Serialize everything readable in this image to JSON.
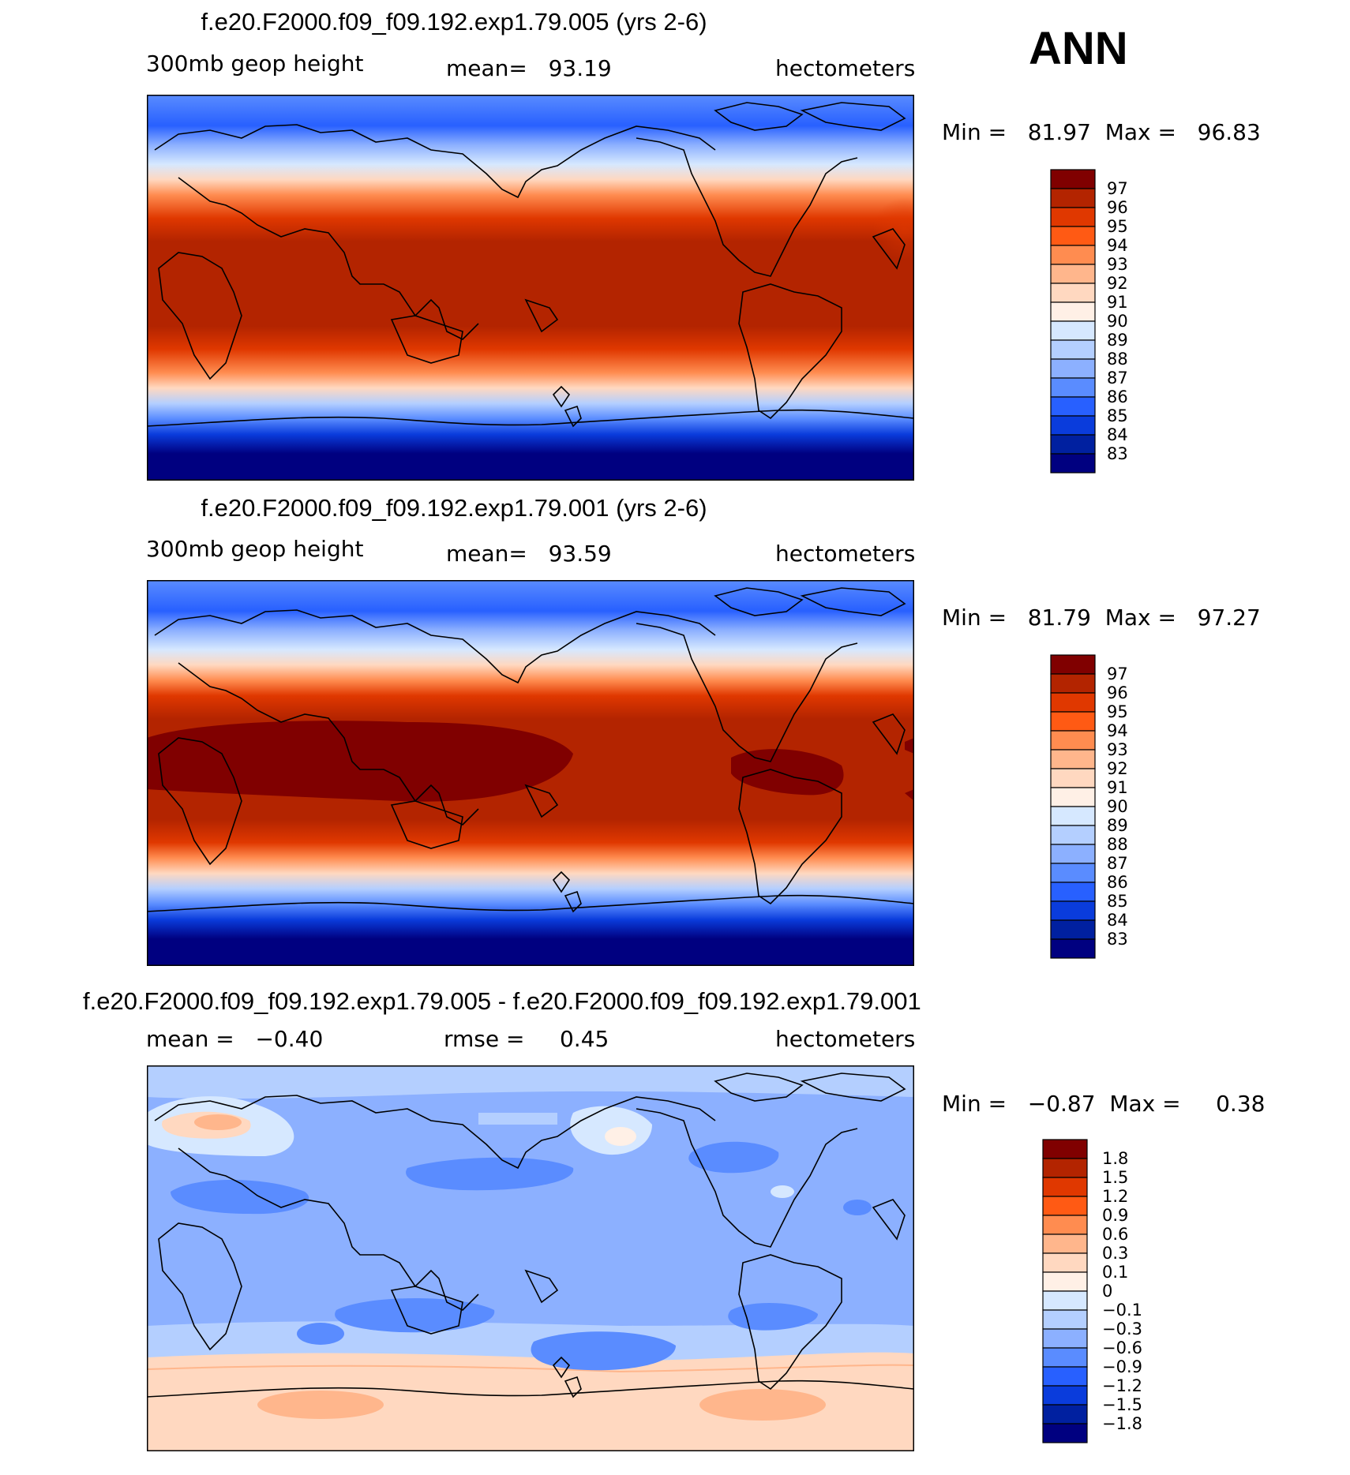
{
  "season": "ANN",
  "panels": [
    {
      "title": "f.e20.F2000.f09_f09.192.exp1.79.005 (yrs 2-6)",
      "left_label": "300mb geop height",
      "center_label": "mean=   93.19",
      "right_label": "hectometers",
      "minmax": "Min =   81.97  Max =   96.83",
      "colorbar_labels": [
        "97",
        "96",
        "95",
        "94",
        "93",
        "92",
        "91",
        "90",
        "89",
        "88",
        "87",
        "86",
        "85",
        "84",
        "83"
      ],
      "colors": [
        "#800000",
        "#b32400",
        "#e03800",
        "#ff5a14",
        "#ff8c50",
        "#ffb68c",
        "#ffd8c0",
        "#fff0e6",
        "#d6e8ff",
        "#b4cfff",
        "#8cb0ff",
        "#5a8cff",
        "#2860ff",
        "#0a3cdc",
        "#0020a0",
        "#000080"
      ]
    },
    {
      "title": "f.e20.F2000.f09_f09.192.exp1.79.001 (yrs 2-6)",
      "left_label": "300mb geop height",
      "center_label": "mean=   93.59",
      "right_label": "hectometers",
      "minmax": "Min =   81.79  Max =   97.27",
      "colorbar_labels": [
        "97",
        "96",
        "95",
        "94",
        "93",
        "92",
        "91",
        "90",
        "89",
        "88",
        "87",
        "86",
        "85",
        "84",
        "83"
      ],
      "colors": [
        "#800000",
        "#b32400",
        "#e03800",
        "#ff5a14",
        "#ff8c50",
        "#ffb68c",
        "#ffd8c0",
        "#fff0e6",
        "#d6e8ff",
        "#b4cfff",
        "#8cb0ff",
        "#5a8cff",
        "#2860ff",
        "#0a3cdc",
        "#0020a0",
        "#000080"
      ]
    },
    {
      "title": "f.e20.F2000.f09_f09.192.exp1.79.005 - f.e20.F2000.f09_f09.192.exp1.79.001",
      "left_label": "mean =   −0.40",
      "center_label": "rmse =     0.45",
      "right_label": "hectometers",
      "minmax": "Min =   −0.87  Max =     0.38",
      "colorbar_labels": [
        "1.8",
        "1.5",
        "1.2",
        "0.9",
        "0.6",
        "0.3",
        "0.1",
        "0",
        "−0.1",
        "−0.3",
        "−0.6",
        "−0.9",
        "−1.2",
        "−1.5",
        "−1.8"
      ],
      "colors": [
        "#800000",
        "#b32400",
        "#e03800",
        "#ff5a14",
        "#ff8c50",
        "#ffb68c",
        "#ffd8c0",
        "#fff0e6",
        "#d6e8ff",
        "#b4cfff",
        "#8cb0ff",
        "#5a8cff",
        "#2860ff",
        "#0a3cdc",
        "#0020a0",
        "#000080"
      ]
    }
  ],
  "chart_data": [
    {
      "type": "heatmap",
      "title": "f.e20.F2000.f09_f09.192.exp1.79.005 (yrs 2-6)",
      "variable": "300mb geop height",
      "units": "hectometers",
      "mean": 93.19,
      "min": 81.97,
      "max": 96.83,
      "contour_levels": [
        83,
        84,
        85,
        86,
        87,
        88,
        89,
        90,
        91,
        92,
        93,
        94,
        95,
        96,
        97
      ],
      "zonal_profile_lat": [
        -90,
        -75,
        -60,
        -50,
        -40,
        -30,
        -20,
        0,
        20,
        30,
        40,
        50,
        60,
        75,
        90
      ],
      "zonal_profile_value": [
        82.0,
        82.8,
        84.5,
        87.0,
        91.0,
        94.5,
        96.0,
        96.5,
        96.0,
        94.5,
        91.5,
        88.5,
        86.5,
        85.0,
        84.5
      ]
    },
    {
      "type": "heatmap",
      "title": "f.e20.F2000.f09_f09.192.exp1.79.001 (yrs 2-6)",
      "variable": "300mb geop height",
      "units": "hectometers",
      "mean": 93.59,
      "min": 81.79,
      "max": 97.27,
      "contour_levels": [
        83,
        84,
        85,
        86,
        87,
        88,
        89,
        90,
        91,
        92,
        93,
        94,
        95,
        96,
        97
      ],
      "zonal_profile_lat": [
        -90,
        -75,
        -60,
        -50,
        -40,
        -30,
        -20,
        0,
        20,
        30,
        40,
        50,
        60,
        75,
        90
      ],
      "zonal_profile_value": [
        81.8,
        82.6,
        84.5,
        87.2,
        91.3,
        94.8,
        96.5,
        97.1,
        96.4,
        94.8,
        91.8,
        88.8,
        86.8,
        85.3,
        84.8
      ]
    },
    {
      "type": "heatmap",
      "title": "f.e20.F2000.f09_f09.192.exp1.79.005 - f.e20.F2000.f09_f09.192.exp1.79.001",
      "units": "hectometers",
      "mean": -0.4,
      "rmse": 0.45,
      "min": -0.87,
      "max": 0.38,
      "contour_levels": [
        -1.8,
        -1.5,
        -1.2,
        -0.9,
        -0.6,
        -0.3,
        -0.1,
        0,
        0.1,
        0.3,
        0.6,
        0.9,
        1.2,
        1.5,
        1.8
      ],
      "zonal_profile_lat": [
        -90,
        -75,
        -65,
        -55,
        -40,
        0,
        40,
        60,
        90
      ],
      "zonal_profile_value": [
        0.2,
        0.25,
        0.1,
        -0.3,
        -0.45,
        -0.4,
        -0.45,
        -0.35,
        -0.3
      ]
    }
  ]
}
